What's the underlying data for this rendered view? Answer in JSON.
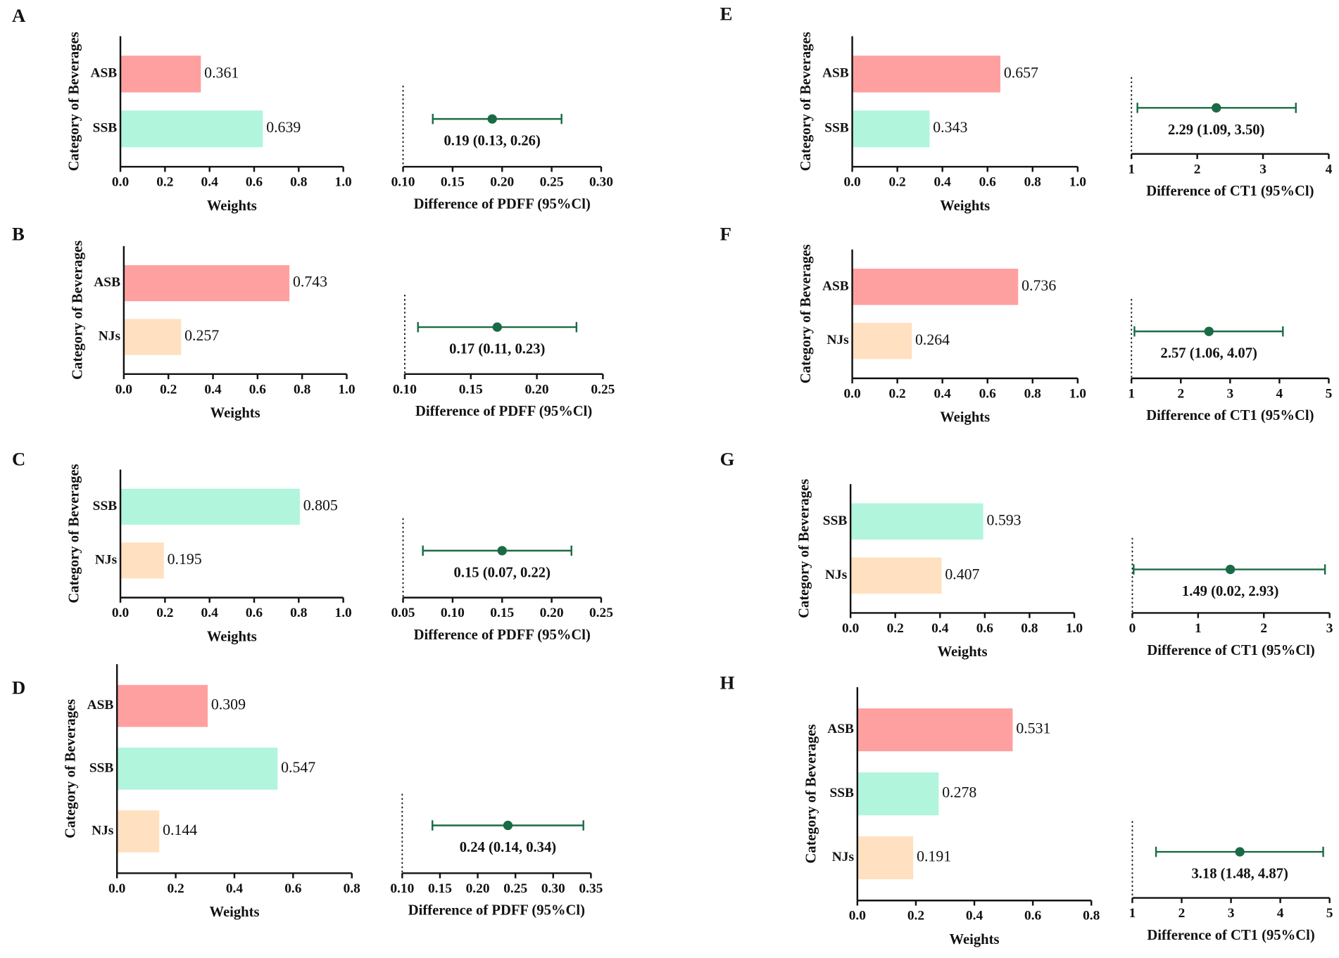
{
  "chart_data": [
    {
      "type": "bar",
      "panel": "A",
      "ylabel": "Category of Beverages",
      "xlabel": "Weights",
      "categories": [
        "ASB",
        "SSB"
      ],
      "values": [
        0.361,
        0.639
      ],
      "colors": [
        "#ffa0a0",
        "#b0f5dc"
      ],
      "xlim": [
        0,
        1
      ],
      "xticks": [
        {
          "value": 0,
          "label": "0.0"
        },
        0.2,
        0.4,
        0.6,
        0.8,
        {
          "value": 1,
          "label": "1.0"
        }
      ]
    },
    {
      "type": "forest",
      "xlabel": "Difference of PDFF (95%Cl)",
      "values": [
        0.19
      ],
      "lower": [
        0.13
      ],
      "upper": [
        0.26
      ],
      "value_labels": [
        "0.19 (0.13, 0.26)"
      ],
      "color": "#1a6b45",
      "xlim": [
        0.1,
        0.3
      ],
      "xticks": [
        {
          "value": 0.1,
          "label": "0.10"
        },
        0.15,
        {
          "value": 0.2,
          "label": "0.20"
        },
        0.25,
        {
          "value": 0.3,
          "label": "0.30"
        }
      ]
    },
    {
      "type": "bar",
      "panel": "B",
      "ylabel": "Category of Beverages",
      "xlabel": "Weights",
      "categories": [
        "ASB",
        "NJs"
      ],
      "values": [
        0.743,
        0.257
      ],
      "colors": [
        "#ffa0a0",
        "#ffe0c0"
      ],
      "xlim": [
        0,
        1
      ],
      "xticks": [
        {
          "value": 0,
          "label": "0.0"
        },
        0.2,
        0.4,
        0.6,
        0.8,
        {
          "value": 1,
          "label": "1.0"
        }
      ]
    },
    {
      "type": "forest",
      "xlabel": "Difference of PDFF (95%Cl)",
      "values": [
        0.17
      ],
      "lower": [
        0.11
      ],
      "upper": [
        0.23
      ],
      "value_labels": [
        "0.17 (0.11, 0.23)"
      ],
      "color": "#1a6b45",
      "xlim": [
        0.1,
        0.25
      ],
      "xticks": [
        {
          "value": 0.1,
          "label": "0.10"
        },
        0.15,
        {
          "value": 0.2,
          "label": "0.20"
        },
        0.25
      ]
    },
    {
      "type": "bar",
      "panel": "C",
      "ylabel": "Category of Beverages",
      "xlabel": "Weights",
      "categories": [
        "SSB",
        "NJs"
      ],
      "values": [
        0.805,
        0.195
      ],
      "colors": [
        "#b0f5dc",
        "#ffe0c0"
      ],
      "xlim": [
        0,
        1
      ],
      "xticks": [
        {
          "value": 0,
          "label": "0.0"
        },
        0.2,
        0.4,
        0.6,
        0.8,
        {
          "value": 1,
          "label": "1.0"
        }
      ]
    },
    {
      "type": "forest",
      "xlabel": "Difference of PDFF (95%Cl)",
      "values": [
        0.15
      ],
      "lower": [
        0.07
      ],
      "upper": [
        0.22
      ],
      "value_labels": [
        "0.15 (0.07, 0.22)"
      ],
      "color": "#1a6b45",
      "xlim": [
        0.05,
        0.25
      ],
      "xticks": [
        0.05,
        {
          "value": 0.1,
          "label": "0.10"
        },
        0.15,
        {
          "value": 0.2,
          "label": "0.20"
        },
        0.25
      ]
    },
    {
      "type": "bar",
      "panel": "D",
      "ylabel": "Category of Beverages",
      "xlabel": "Weights",
      "categories": [
        "ASB",
        "SSB",
        "NJs"
      ],
      "values": [
        0.309,
        0.547,
        0.144
      ],
      "colors": [
        "#ffa0a0",
        "#b0f5dc",
        "#ffe0c0"
      ],
      "xlim": [
        0,
        0.8
      ],
      "xticks": [
        {
          "value": 0,
          "label": "0.0"
        },
        0.2,
        0.4,
        0.6,
        0.8
      ]
    },
    {
      "type": "forest",
      "xlabel": "Difference of PDFF (95%Cl)",
      "values": [
        0.24
      ],
      "lower": [
        0.14
      ],
      "upper": [
        0.34
      ],
      "value_labels": [
        "0.24 (0.14, 0.34)"
      ],
      "color": "#1a6b45",
      "xlim": [
        0.1,
        0.35
      ],
      "xticks": [
        {
          "value": 0.1,
          "label": "0.10"
        },
        0.15,
        {
          "value": 0.2,
          "label": "0.20"
        },
        0.25,
        {
          "value": 0.3,
          "label": "0.30"
        },
        0.35
      ]
    },
    {
      "type": "bar",
      "panel": "E",
      "ylabel": "Category of Beverages",
      "xlabel": "Weights",
      "categories": [
        "ASB",
        "SSB"
      ],
      "values": [
        0.657,
        0.343
      ],
      "colors": [
        "#ffa0a0",
        "#b0f5dc"
      ],
      "xlim": [
        0,
        1
      ],
      "xticks": [
        {
          "value": 0,
          "label": "0.0"
        },
        0.2,
        0.4,
        0.6,
        0.8,
        {
          "value": 1,
          "label": "1.0"
        }
      ]
    },
    {
      "type": "forest",
      "xlabel": "Difference of CT1 (95%Cl)",
      "values": [
        2.29
      ],
      "lower": [
        1.09
      ],
      "upper": [
        3.5
      ],
      "value_labels": [
        "2.29 (1.09, 3.50)"
      ],
      "color": "#1a6b45",
      "xlim": [
        1,
        4
      ],
      "xticks": [
        1,
        2,
        3,
        4
      ]
    },
    {
      "type": "bar",
      "panel": "F",
      "ylabel": "Category of Beverages",
      "xlabel": "Weights",
      "categories": [
        "ASB",
        "NJs"
      ],
      "values": [
        0.736,
        0.264
      ],
      "colors": [
        "#ffa0a0",
        "#ffe0c0"
      ],
      "xlim": [
        0,
        1
      ],
      "xticks": [
        {
          "value": 0,
          "label": "0.0"
        },
        0.2,
        0.4,
        0.6,
        0.8,
        {
          "value": 1,
          "label": "1.0"
        }
      ]
    },
    {
      "type": "forest",
      "xlabel": "Difference of CT1 (95%Cl)",
      "values": [
        2.57
      ],
      "lower": [
        1.06
      ],
      "upper": [
        4.07
      ],
      "value_labels": [
        "2.57 (1.06, 4.07)"
      ],
      "color": "#1a6b45",
      "xlim": [
        1,
        5
      ],
      "xticks": [
        1,
        2,
        3,
        4,
        5
      ]
    },
    {
      "type": "bar",
      "panel": "G",
      "ylabel": "Category of Beverages",
      "xlabel": "Weights",
      "categories": [
        "SSB",
        "NJs"
      ],
      "values": [
        0.593,
        0.407
      ],
      "colors": [
        "#b0f5dc",
        "#ffe0c0"
      ],
      "xlim": [
        0,
        1
      ],
      "xticks": [
        {
          "value": 0,
          "label": "0.0"
        },
        0.2,
        0.4,
        0.6,
        0.8,
        {
          "value": 1,
          "label": "1.0"
        }
      ]
    },
    {
      "type": "forest",
      "xlabel": "Difference of CT1 (95%Cl)",
      "values": [
        1.49
      ],
      "lower": [
        0.02
      ],
      "upper": [
        2.93
      ],
      "value_labels": [
        "1.49 (0.02, 2.93)"
      ],
      "color": "#1a6b45",
      "xlim": [
        0,
        3
      ],
      "xticks": [
        0,
        1,
        2,
        3
      ]
    },
    {
      "type": "bar",
      "panel": "H",
      "ylabel": "Category of Beverages",
      "xlabel": "Weights",
      "categories": [
        "ASB",
        "SSB",
        "NJs"
      ],
      "values": [
        0.531,
        0.278,
        0.191
      ],
      "colors": [
        "#ffa0a0",
        "#b0f5dc",
        "#ffe0c0"
      ],
      "xlim": [
        0,
        0.8
      ],
      "xticks": [
        {
          "value": 0,
          "label": "0.0"
        },
        0.2,
        0.4,
        0.6,
        0.8
      ]
    },
    {
      "type": "forest",
      "xlabel": "Difference of CT1 (95%Cl)",
      "values": [
        3.18
      ],
      "lower": [
        1.48
      ],
      "upper": [
        4.87
      ],
      "value_labels": [
        "3.18 (1.48, 4.87)"
      ],
      "color": "#1a6b45",
      "xlim": [
        1,
        5
      ],
      "xticks": [
        1,
        2,
        3,
        4,
        5
      ]
    }
  ]
}
